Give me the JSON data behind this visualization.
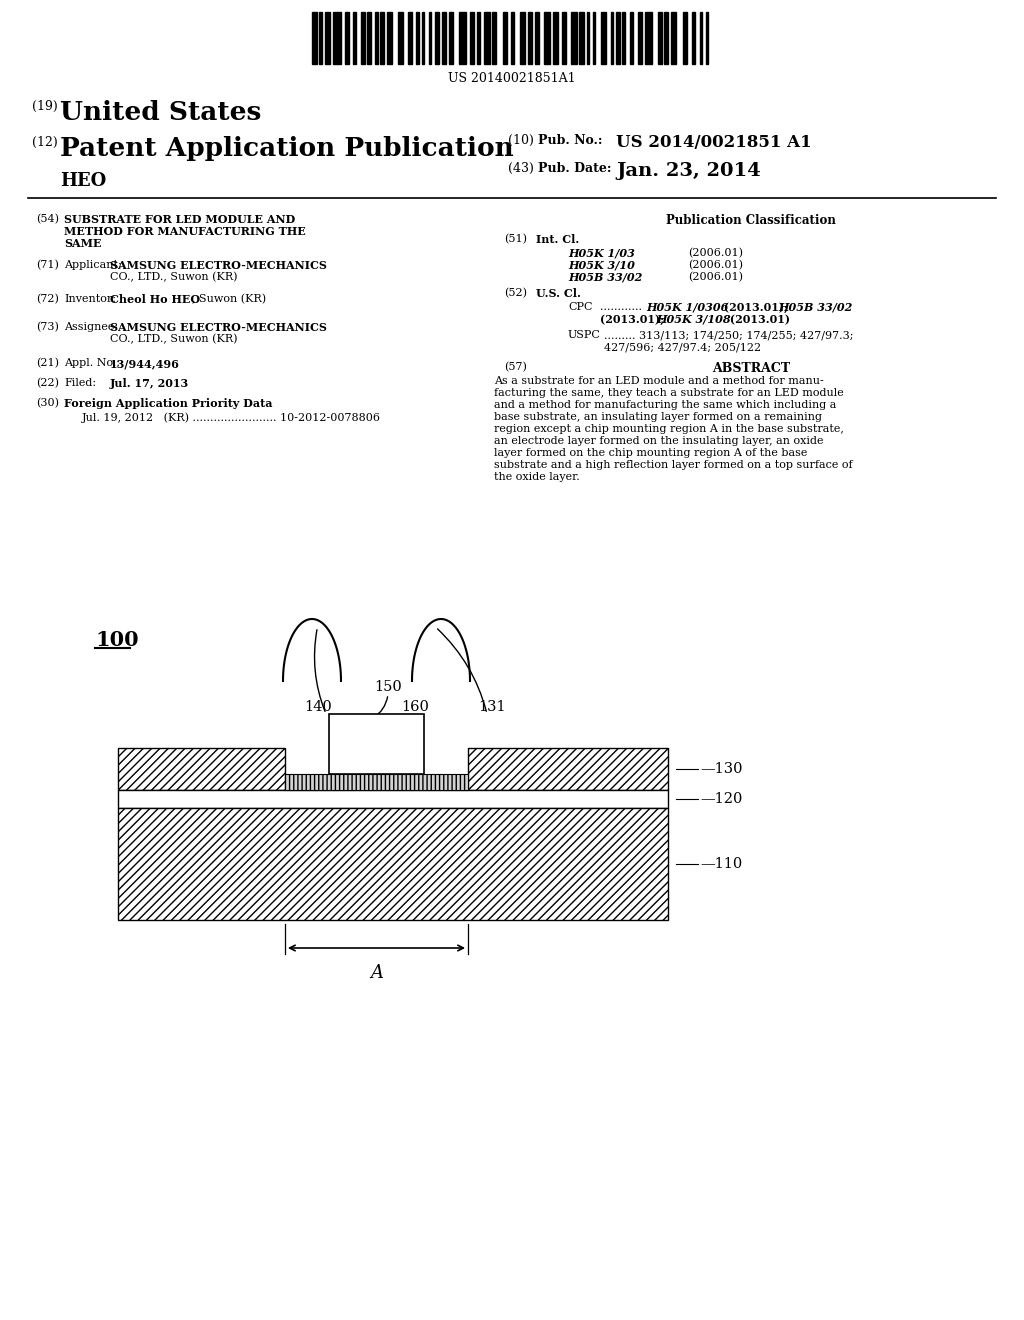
{
  "bg_color": "#ffffff",
  "barcode_text": "US 20140021851A1",
  "diagram": {
    "label_100": "100",
    "label_150": "150",
    "label_140": "140",
    "label_160": "160",
    "label_131": "131",
    "label_130": "130",
    "label_120": "120",
    "label_110": "110",
    "label_A": "A"
  }
}
